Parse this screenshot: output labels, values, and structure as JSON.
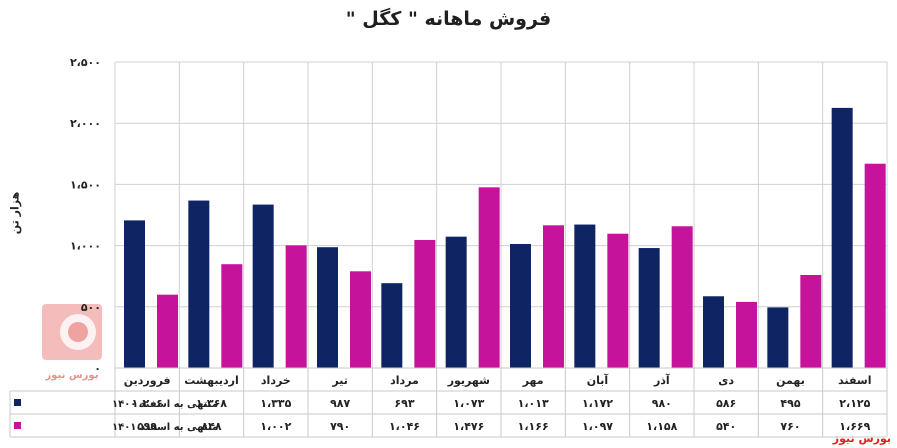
{
  "chart_data": {
    "type": "bar",
    "title": "فروش ماهانه \" کگل \"",
    "ylabel": "هزار تن",
    "ylim": [
      0,
      2500
    ],
    "y_ticks": [
      "۰",
      "۵۰۰",
      "۱،۰۰۰",
      "۱،۵۰۰",
      "۲،۰۰۰",
      "۲،۵۰۰"
    ],
    "grid": true,
    "categories": [
      "فروردین",
      "اردیبهشت",
      "خرداد",
      "تیر",
      "مرداد",
      "شهریور",
      "مهر",
      "آبان",
      "آذر",
      "دی",
      "بهمن",
      "اسفند"
    ],
    "series": [
      {
        "name": "منتهی به اسفند ۱۴۰۰",
        "color": "#0f2462",
        "values": [
          1206,
          1368,
          1335,
          987,
          693,
          1073,
          1013,
          1172,
          980,
          586,
          495,
          2125
        ],
        "labels": [
          "۱،۲۰۶",
          "۱،۳۶۸",
          "۱،۳۳۵",
          "۹۸۷",
          "۶۹۳",
          "۱،۰۷۳",
          "۱،۰۱۳",
          "۱،۱۷۲",
          "۹۸۰",
          "۵۸۶",
          "۴۹۵",
          "۲،۱۲۵"
        ]
      },
      {
        "name": "منتهی به اسفند ۱۴۰۱",
        "color": "#c5139b",
        "values": [
          599,
          848,
          1002,
          790,
          1046,
          1476,
          1166,
          1097,
          1158,
          540,
          760,
          1669
        ],
        "labels": [
          "۵۹۹",
          "۸۴۸",
          "۱،۰۰۲",
          "۷۹۰",
          "۱،۰۴۶",
          "۱،۴۷۶",
          "۱،۱۶۶",
          "۱،۰۹۷",
          "۱،۱۵۸",
          "۵۴۰",
          "۷۶۰",
          "۱،۶۶۹"
        ]
      }
    ]
  },
  "watermark": "بورس نیوز",
  "logo_text": "بورس نیوز"
}
